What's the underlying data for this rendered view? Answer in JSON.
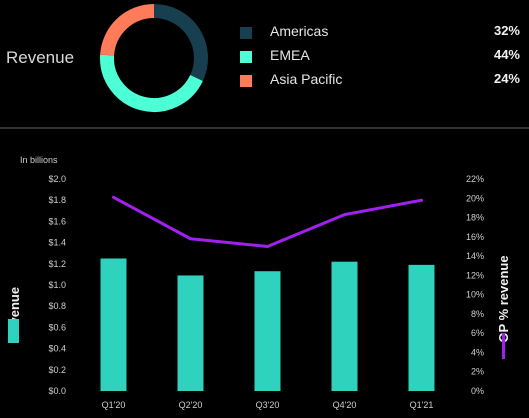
{
  "donut": {
    "title": "Revenue",
    "segments": [
      {
        "name": "Americas",
        "value": 32,
        "label": "32%",
        "color": "#173f4f"
      },
      {
        "name": "EMEA",
        "value": 44,
        "label": "44%",
        "color": "#4dffd5"
      },
      {
        "name": "Asia Pacific",
        "value": 24,
        "label": "24%",
        "color": "#ff7b5a"
      }
    ]
  },
  "chart_data": {
    "type": "bar",
    "unit_note": "In billions",
    "categories": [
      "Q1'20",
      "Q2'20",
      "Q3'20",
      "Q4'20",
      "Q1'21"
    ],
    "series": [
      {
        "name": "Revenue",
        "type": "bar",
        "axis": "left",
        "color": "#2fd3bd",
        "values": [
          1.25,
          1.09,
          1.13,
          1.22,
          1.19
        ]
      },
      {
        "name": "OP % revenue",
        "type": "line",
        "axis": "right",
        "color": "#a020f0",
        "values": [
          20.1,
          15.8,
          15.0,
          18.3,
          19.8
        ]
      }
    ],
    "y_left": {
      "label": "Revenue",
      "min": 0,
      "max": 2.0,
      "step": 0.2,
      "ticks": [
        "$0.0",
        "$0.2",
        "$0.4",
        "$0.6",
        "$0.8",
        "$1.0",
        "$1.2",
        "$1.4",
        "$1.6",
        "$1.8",
        "$2.0"
      ]
    },
    "y_right": {
      "label": "OP % revenue",
      "min": 0,
      "max": 22,
      "step": 2,
      "ticks": [
        "0%",
        "2%",
        "4%",
        "6%",
        "8%",
        "10%",
        "12%",
        "14%",
        "16%",
        "18%",
        "20%",
        "22%"
      ]
    },
    "grid": false
  }
}
